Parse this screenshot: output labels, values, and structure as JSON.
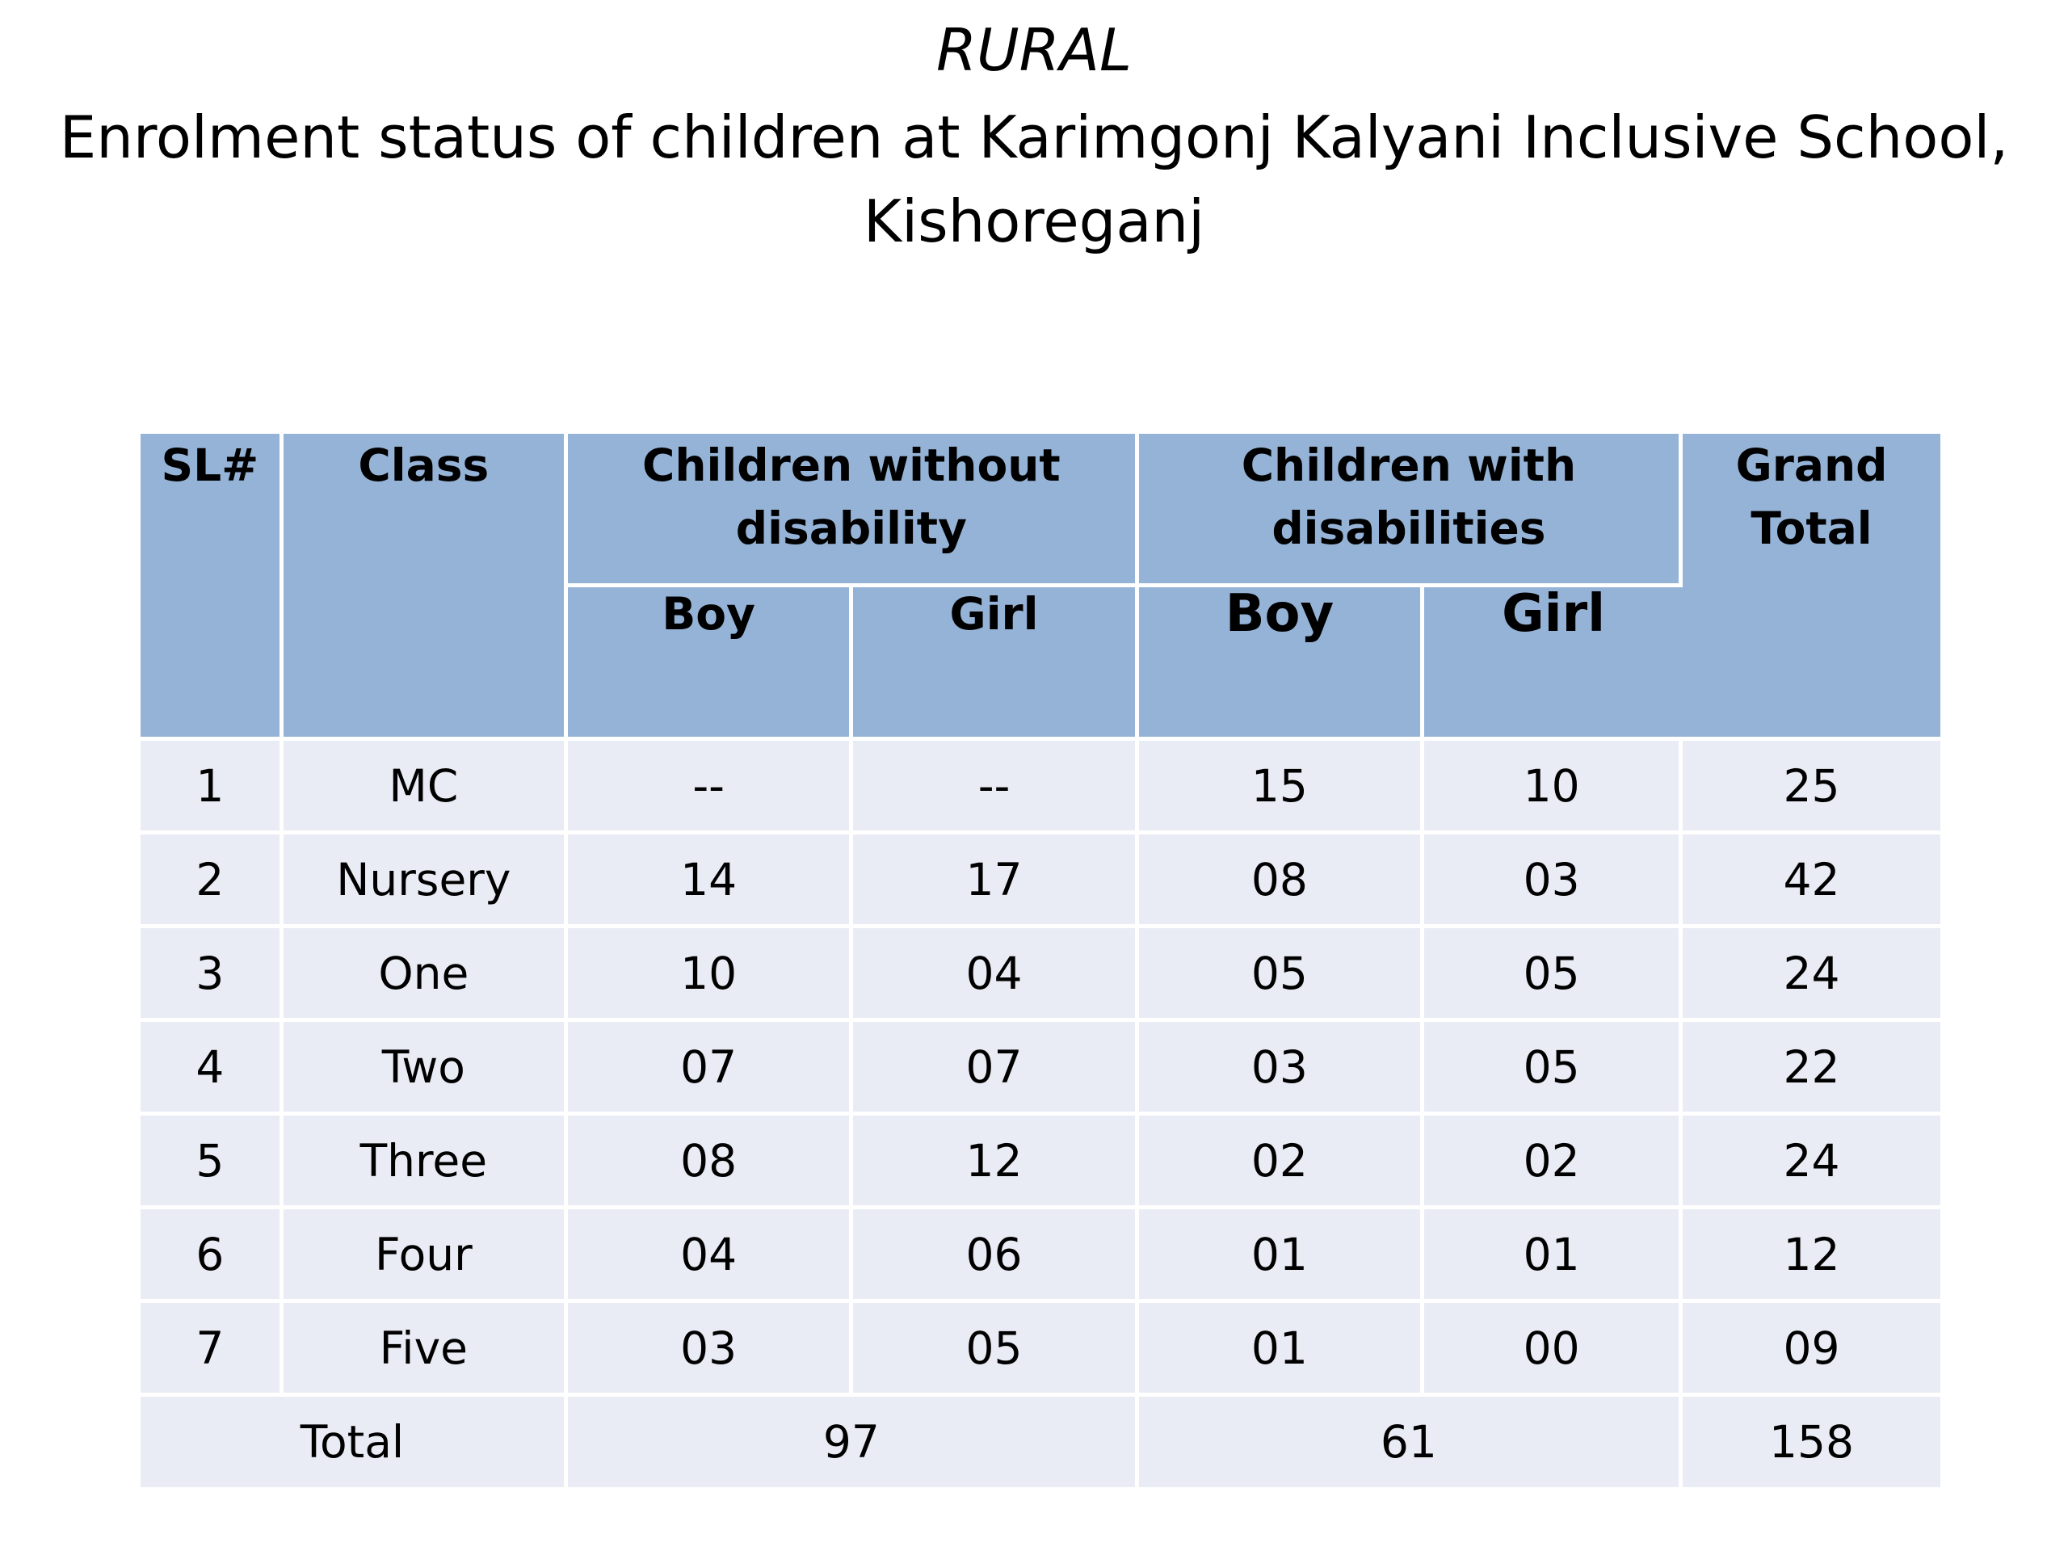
{
  "title": {
    "line1": "RURAL",
    "line2": "Enrolment status of children at Karimgonj Kalyani Inclusive School,",
    "line3": "Kishoreganj"
  },
  "table": {
    "headers": {
      "sl": "SL#",
      "class": "Class",
      "without_disability": "Children without disability",
      "with_disabilities": "Children with disabilities",
      "grand_total": "Grand Total",
      "boy": "Boy",
      "girl": "Girl"
    },
    "rows": [
      {
        "sl": "1",
        "class": "MC",
        "wo_boy": "--",
        "wo_girl": "--",
        "w_boy": "15",
        "w_girl": "10",
        "total": "25"
      },
      {
        "sl": "2",
        "class": "Nursery",
        "wo_boy": "14",
        "wo_girl": "17",
        "w_boy": "08",
        "w_girl": "03",
        "total": "42"
      },
      {
        "sl": "3",
        "class": "One",
        "wo_boy": "10",
        "wo_girl": "04",
        "w_boy": "05",
        "w_girl": "05",
        "total": "24"
      },
      {
        "sl": "4",
        "class": "Two",
        "wo_boy": "07",
        "wo_girl": "07",
        "w_boy": "03",
        "w_girl": "05",
        "total": "22"
      },
      {
        "sl": "5",
        "class": "Three",
        "wo_boy": "08",
        "wo_girl": "12",
        "w_boy": "02",
        "w_girl": "02",
        "total": "24"
      },
      {
        "sl": "6",
        "class": "Four",
        "wo_boy": "04",
        "wo_girl": "06",
        "w_boy": "01",
        "w_girl": "01",
        "total": "12"
      },
      {
        "sl": "7",
        "class": "Five",
        "wo_boy": "03",
        "wo_girl": "05",
        "w_boy": "01",
        "w_girl": "00",
        "total": "09"
      }
    ],
    "total_row": {
      "label": "Total",
      "without_disability": "97",
      "with_disabilities": "61",
      "grand_total": "158"
    }
  },
  "colors": {
    "header_bg": "#95b3d7",
    "row_bg": "#e9ecf4"
  }
}
